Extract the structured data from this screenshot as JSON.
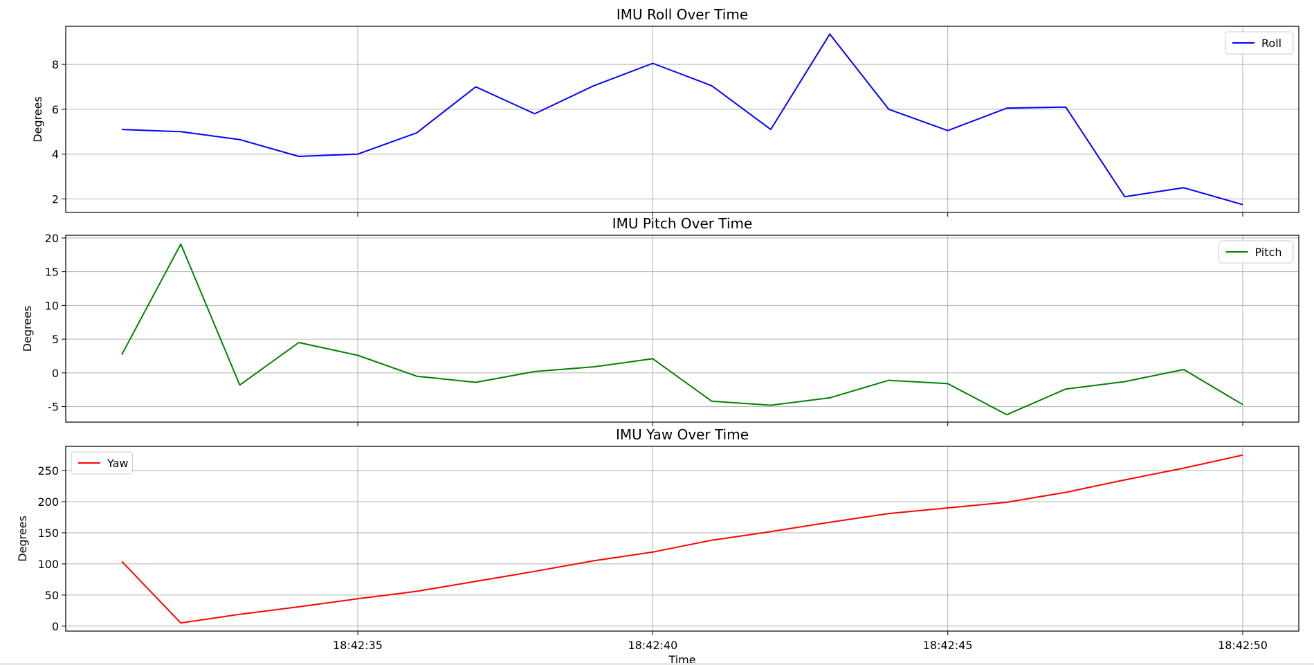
{
  "chart_data": [
    {
      "type": "line",
      "title": "IMU Roll Over Time",
      "ylabel": "Degrees",
      "xlabel": "",
      "ylim": [
        1.4,
        9.7
      ],
      "yticks": [
        2,
        4,
        6,
        8
      ],
      "grid": true,
      "legend_position": "top-right",
      "x": [
        "18:42:31",
        "18:42:32",
        "18:42:33",
        "18:42:34",
        "18:42:35",
        "18:42:36",
        "18:42:37",
        "18:42:38",
        "18:42:39",
        "18:42:40",
        "18:42:41",
        "18:42:42",
        "18:42:43",
        "18:42:44",
        "18:42:45",
        "18:42:46",
        "18:42:47",
        "18:42:48",
        "18:42:49",
        "18:42:50"
      ],
      "series": [
        {
          "name": "Roll",
          "color": "#0000ff",
          "values": [
            5.1,
            5.0,
            4.65,
            3.9,
            4.0,
            4.95,
            7.0,
            5.8,
            7.05,
            8.05,
            7.05,
            5.1,
            9.35,
            6.0,
            5.05,
            6.05,
            6.1,
            2.1,
            2.5,
            1.75
          ]
        }
      ]
    },
    {
      "type": "line",
      "title": "IMU Pitch Over Time",
      "ylabel": "Degrees",
      "xlabel": "",
      "ylim": [
        -7.3,
        20.4
      ],
      "yticks": [
        -5,
        0,
        5,
        10,
        15,
        20
      ],
      "grid": true,
      "legend_position": "top-right",
      "x": [
        "18:42:31",
        "18:42:32",
        "18:42:33",
        "18:42:34",
        "18:42:35",
        "18:42:36",
        "18:42:37",
        "18:42:38",
        "18:42:39",
        "18:42:40",
        "18:42:41",
        "18:42:42",
        "18:42:43",
        "18:42:44",
        "18:42:45",
        "18:42:46",
        "18:42:47",
        "18:42:48",
        "18:42:49",
        "18:42:50"
      ],
      "series": [
        {
          "name": "Pitch",
          "color": "#008000",
          "values": [
            2.7,
            19.1,
            -1.8,
            4.5,
            2.6,
            -0.5,
            -1.4,
            0.2,
            0.9,
            2.1,
            -4.2,
            -4.8,
            -3.7,
            -1.1,
            -1.6,
            -6.2,
            -2.4,
            -1.3,
            0.5,
            -4.7
          ]
        }
      ]
    },
    {
      "type": "line",
      "title": "IMU Yaw Over Time",
      "ylabel": "Degrees",
      "xlabel": "Time",
      "ylim": [
        -8,
        289
      ],
      "yticks": [
        0,
        50,
        100,
        150,
        200,
        250
      ],
      "grid": true,
      "legend_position": "top-left",
      "x": [
        "18:42:31",
        "18:42:32",
        "18:42:33",
        "18:42:34",
        "18:42:35",
        "18:42:36",
        "18:42:37",
        "18:42:38",
        "18:42:39",
        "18:42:40",
        "18:42:41",
        "18:42:42",
        "18:42:43",
        "18:42:44",
        "18:42:45",
        "18:42:46",
        "18:42:47",
        "18:42:48",
        "18:42:49",
        "18:42:50"
      ],
      "xticks": [
        "18:42:35",
        "18:42:40",
        "18:42:45",
        "18:42:50"
      ],
      "series": [
        {
          "name": "Yaw",
          "color": "#ff0000",
          "values": [
            104,
            5,
            19,
            31,
            44,
            56,
            72,
            88,
            105,
            119,
            138,
            152,
            167,
            181,
            190,
            199,
            215,
            235,
            254,
            275
          ]
        }
      ]
    }
  ]
}
